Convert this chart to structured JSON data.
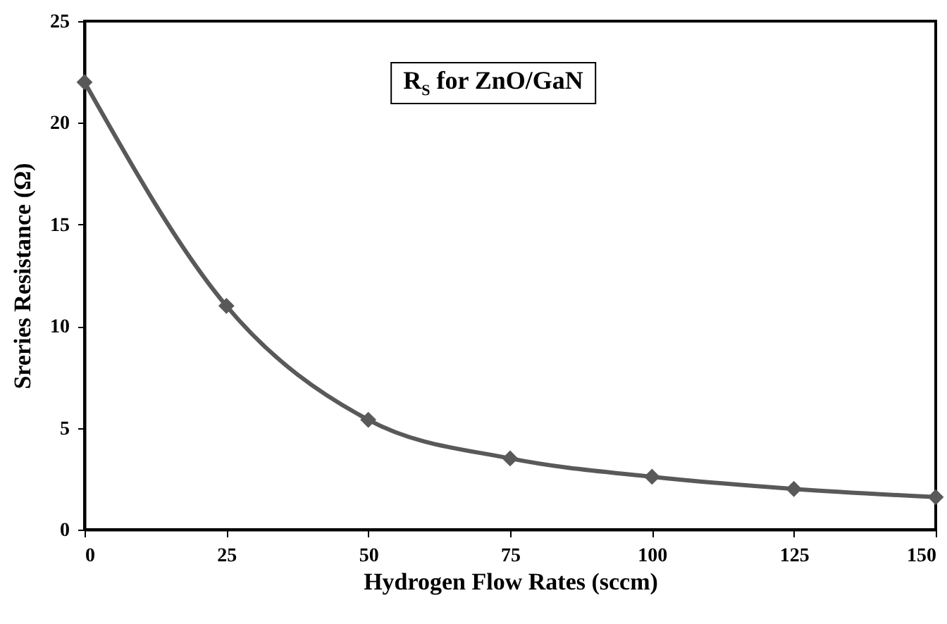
{
  "chart_data": {
    "type": "line",
    "xlabel": "Hydrogen Flow Rates (sccm)",
    "ylabel": "Sreries Resistance (Ω)",
    "annotations": [
      "R$_{S}$ for ZnO/GaN"
    ],
    "x": [
      0,
      25,
      50,
      75,
      100,
      125,
      150
    ],
    "series": [
      {
        "color": "#595959",
        "values": [
          22.0,
          11.0,
          5.4,
          3.5,
          2.6,
          2.0,
          1.6
        ]
      }
    ],
    "xlim": [
      0,
      150
    ],
    "xticks": [
      0,
      25,
      50,
      75,
      100,
      125,
      150
    ],
    "ylim": [
      0,
      25
    ],
    "yticks": [
      0,
      5,
      10,
      15,
      20,
      25
    ],
    "grid": false,
    "marker": "diamond",
    "line_style": "solid"
  }
}
